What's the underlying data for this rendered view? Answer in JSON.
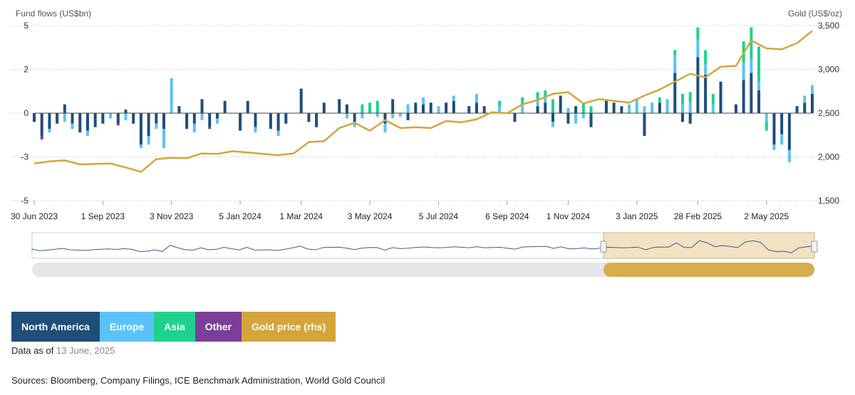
{
  "chart_data": {
    "type": "bar",
    "ylabel_left": "Fund flows (US$bn)",
    "ylabel_right": "Gold (US$/oz)",
    "y_left_ticks": [
      "-5",
      "-3",
      "0",
      "2",
      "5"
    ],
    "y_left_tick_values": [
      -5,
      -2.5,
      0,
      2.5,
      5
    ],
    "y_left_range": [
      -5,
      5
    ],
    "y_right_ticks": [
      "1,500",
      "2,000",
      "2,500",
      "3,000",
      "3,500"
    ],
    "y_right_tick_values": [
      1500,
      2000,
      2500,
      3000,
      3500
    ],
    "y_right_range": [
      1500,
      3500
    ],
    "x_range": [
      "2023-06-30",
      "2025-06-13"
    ],
    "x_ticks": [
      "30 Jun 2023",
      "1 Sep 2023",
      "3 Nov 2023",
      "5 Jan 2024",
      "1 Mar 2024",
      "3 May 2024",
      "5 Jul 2024",
      "6 Sep 2024",
      "1 Nov 2024",
      "3 Jan 2025",
      "28 Feb 2025",
      "2 May 2025"
    ],
    "x_tick_dates": [
      "2023-06-30",
      "2023-09-01",
      "2023-11-03",
      "2024-01-05",
      "2024-03-01",
      "2024-05-03",
      "2024-07-05",
      "2024-09-06",
      "2024-11-01",
      "2025-01-03",
      "2025-02-28",
      "2025-05-02"
    ],
    "stacked": true,
    "grid": true,
    "series": [
      {
        "name": "North America",
        "color": "#1f4e79",
        "weeks": [
          "2023-06-30",
          "2023-07-07",
          "2023-07-14",
          "2023-07-21",
          "2023-07-28",
          "2023-08-04",
          "2023-08-11",
          "2023-08-18",
          "2023-08-25",
          "2023-09-01",
          "2023-09-15",
          "2023-09-22",
          "2023-09-29",
          "2023-10-06",
          "2023-10-13",
          "2023-10-20",
          "2023-10-27",
          "2023-11-10",
          "2023-11-17",
          "2023-11-24",
          "2023-12-01",
          "2023-12-08",
          "2023-12-15",
          "2023-12-22",
          "2024-01-05",
          "2024-01-12",
          "2024-01-19",
          "2024-02-02",
          "2024-02-09",
          "2024-02-16",
          "2024-03-01",
          "2024-03-08",
          "2024-03-15",
          "2024-03-22",
          "2024-04-05",
          "2024-04-12",
          "2024-04-19",
          "2024-05-17",
          "2024-05-24",
          "2024-06-07",
          "2024-06-14",
          "2024-06-21",
          "2024-06-28",
          "2024-07-12",
          "2024-07-19",
          "2024-08-02",
          "2024-08-09",
          "2024-08-16",
          "2024-09-13",
          "2024-10-04",
          "2024-10-11",
          "2024-10-18",
          "2024-10-25",
          "2024-11-01",
          "2024-11-08",
          "2024-11-22",
          "2024-12-06",
          "2024-12-13",
          "2024-12-20",
          "2025-01-10",
          "2025-01-24",
          "2025-02-07",
          "2025-02-14",
          "2025-02-21",
          "2025-02-28",
          "2025-03-07",
          "2025-03-21",
          "2025-04-04",
          "2025-04-11",
          "2025-04-18",
          "2025-04-25",
          "2025-05-09",
          "2025-05-16",
          "2025-05-23",
          "2025-05-30",
          "2025-06-06",
          "2025-06-13"
        ],
        "values": [
          -0.5,
          -1.3,
          -0.9,
          -0.6,
          0.5,
          -0.6,
          -1.1,
          -1.0,
          -0.8,
          -0.6,
          -0.6,
          0.2,
          -0.6,
          -1.8,
          -1.3,
          -0.6,
          -0.9,
          0.4,
          -0.9,
          -0.6,
          0.8,
          -0.8,
          -0.3,
          0.7,
          -1.0,
          0.7,
          -0.8,
          -0.9,
          -1.0,
          -0.6,
          1.4,
          -0.5,
          -0.8,
          0.6,
          0.8,
          0.5,
          -0.5,
          -0.6,
          0.8,
          -0.4,
          0.6,
          0.5,
          0.6,
          0.6,
          0.7,
          0.4,
          0.6,
          0.4,
          -0.5,
          0.4,
          0.6,
          -0.5,
          1.0,
          -0.6,
          0.4,
          -0.8,
          0.7,
          0.6,
          0.4,
          -1.3,
          0.6,
          2.3,
          -0.5,
          -0.6,
          3.2,
          2.2,
          1.8,
          0.5,
          1.9,
          2.3,
          1.3,
          -1.8,
          -1.2,
          -2.1,
          0.4,
          0.6,
          1.1
        ]
      },
      {
        "name": "Europe",
        "color": "#5bc2f7",
        "weeks": [
          "2023-07-14",
          "2023-07-28",
          "2023-08-04",
          "2023-08-18",
          "2023-09-08",
          "2023-09-22",
          "2023-10-06",
          "2023-10-13",
          "2023-10-20",
          "2023-10-27",
          "2023-11-03",
          "2023-11-24",
          "2023-12-01",
          "2023-12-15",
          "2024-01-19",
          "2024-02-09",
          "2024-04-12",
          "2024-04-19",
          "2024-04-26",
          "2024-05-10",
          "2024-05-17",
          "2024-05-24",
          "2024-05-31",
          "2024-06-07",
          "2024-06-21",
          "2024-07-05",
          "2024-07-19",
          "2024-08-09",
          "2024-08-30",
          "2024-09-20",
          "2024-10-04",
          "2024-10-11",
          "2024-10-18",
          "2024-11-01",
          "2024-11-08",
          "2024-11-15",
          "2024-12-27",
          "2025-01-03",
          "2025-01-10",
          "2025-01-17",
          "2025-01-31",
          "2025-02-07",
          "2025-02-14",
          "2025-02-21",
          "2025-02-28",
          "2025-03-07",
          "2025-03-14",
          "2025-04-11",
          "2025-04-18",
          "2025-04-25",
          "2025-05-02",
          "2025-05-09",
          "2025-05-16",
          "2025-05-23",
          "2025-06-06",
          "2025-06-13"
        ],
        "values": [
          -0.2,
          -0.5,
          -0.3,
          -0.3,
          -0.3,
          -0.4,
          -0.2,
          -0.5,
          -0.3,
          -1.1,
          2.0,
          -0.5,
          -0.4,
          -0.3,
          -0.3,
          -0.3,
          -0.3,
          -0.3,
          -0.3,
          -0.2,
          -0.5,
          -0.3,
          -0.2,
          0.5,
          0.4,
          0.4,
          0.3,
          0.5,
          0.4,
          0.5,
          0.4,
          0.3,
          -0.3,
          0.3,
          -0.6,
          -0.3,
          0.5,
          0.8,
          0.4,
          0.6,
          0.8,
          1.0,
          0.5,
          0.6,
          1.0,
          0.6,
          0.5,
          1.0,
          0.8,
          0.5,
          -0.5,
          -0.3,
          -0.6,
          -0.7,
          0.4,
          0.5
        ]
      },
      {
        "name": "Asia",
        "color": "#1ed28e",
        "weeks": [
          "2024-04-26",
          "2024-05-03",
          "2024-05-10",
          "2024-08-30",
          "2024-09-20",
          "2024-10-04",
          "2024-10-11",
          "2024-10-18",
          "2024-11-15",
          "2024-11-22",
          "2025-01-24",
          "2025-02-07",
          "2025-02-14",
          "2025-02-21",
          "2025-02-28",
          "2025-03-07",
          "2025-03-14",
          "2025-04-11",
          "2025-04-18",
          "2025-04-25",
          "2025-05-02"
        ],
        "values": [
          0.5,
          0.6,
          0.7,
          0.3,
          0.4,
          0.4,
          0.4,
          0.8,
          0.6,
          0.4,
          0.3,
          0.3,
          0.6,
          0.6,
          0.7,
          0.8,
          0.6,
          1.2,
          1.8,
          2.0,
          -0.5
        ]
      },
      {
        "name": "Other",
        "color": "#7b3f98",
        "weeks": [
          "2023-07-07",
          "2023-09-15",
          "2023-12-08"
        ],
        "values": [
          -0.2,
          -0.1,
          -0.1
        ]
      }
    ],
    "line": {
      "name": "Gold price (rhs)",
      "color": "#d4a53a",
      "x": [
        "2023-06-30",
        "2023-07-14",
        "2023-07-28",
        "2023-08-11",
        "2023-08-25",
        "2023-09-08",
        "2023-09-22",
        "2023-10-06",
        "2023-10-20",
        "2023-11-03",
        "2023-11-17",
        "2023-12-01",
        "2023-12-15",
        "2023-12-29",
        "2024-01-12",
        "2024-01-26",
        "2024-02-09",
        "2024-02-23",
        "2024-03-08",
        "2024-03-22",
        "2024-04-05",
        "2024-04-19",
        "2024-05-03",
        "2024-05-17",
        "2024-05-31",
        "2024-06-14",
        "2024-06-28",
        "2024-07-12",
        "2024-07-26",
        "2024-08-09",
        "2024-08-23",
        "2024-09-06",
        "2024-09-20",
        "2024-10-04",
        "2024-10-18",
        "2024-11-01",
        "2024-11-15",
        "2024-11-29",
        "2024-12-13",
        "2024-12-27",
        "2025-01-10",
        "2025-01-24",
        "2025-02-07",
        "2025-02-21",
        "2025-03-07",
        "2025-03-21",
        "2025-04-04",
        "2025-04-18",
        "2025-05-02",
        "2025-05-16",
        "2025-05-30",
        "2025-06-13"
      ],
      "values": [
        1925,
        1950,
        1960,
        1915,
        1920,
        1925,
        1880,
        1830,
        1975,
        1990,
        1985,
        2040,
        2035,
        2065,
        2050,
        2035,
        2020,
        2040,
        2170,
        2180,
        2330,
        2390,
        2300,
        2420,
        2330,
        2340,
        2330,
        2410,
        2395,
        2430,
        2510,
        2500,
        2600,
        2650,
        2720,
        2740,
        2610,
        2660,
        2640,
        2620,
        2700,
        2770,
        2860,
        2950,
        2910,
        3030,
        3040,
        3330,
        3240,
        3230,
        3300,
        3440
      ]
    }
  },
  "legend": {
    "north_america": "North America",
    "europe": "Europe",
    "asia": "Asia",
    "other": "Other",
    "gold": "Gold price (rhs)"
  },
  "colors": {
    "north_america": "#1f4e79",
    "europe": "#5bc2f7",
    "asia": "#1ed28e",
    "other": "#7b3f98",
    "gold": "#d4a53a"
  },
  "footer": {
    "asof_prefix": "Data as of",
    "asof_date": "13 June, 2025",
    "sources": "Sources: Bloomberg, Company Filings, ICE Benchmark Administration, World Gold Council"
  }
}
